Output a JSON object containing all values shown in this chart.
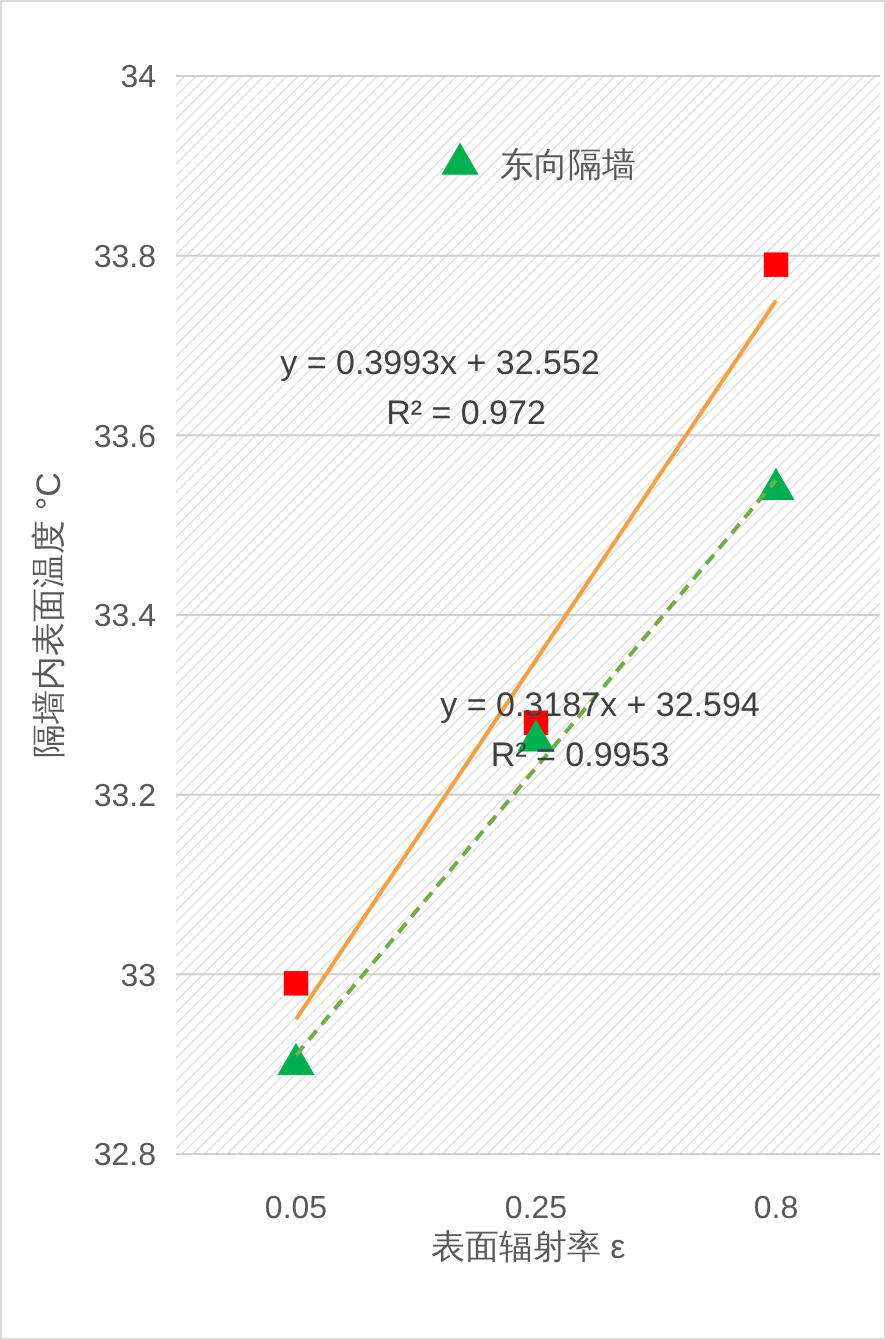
{
  "chart_data": {
    "type": "scatter",
    "xlabel": "表面辐射率 ε",
    "ylabel": "隔墙内表面温度 °C",
    "categories": [
      "0.05",
      "0.25",
      "0.8"
    ],
    "ylim": [
      32.8,
      34
    ],
    "yticks": [
      32.8,
      33,
      33.2,
      33.4,
      33.6,
      33.8,
      34
    ],
    "grid": "y",
    "legend": "top",
    "series": [
      {
        "color": "#ff0000",
        "marker": "square",
        "values": [
          32.99,
          33.28,
          33.79
        ]
      },
      {
        "name": "东向隔墙",
        "color": "#00b050",
        "marker": "triangle",
        "values": [
          32.9,
          33.26,
          33.54
        ]
      },
      {
        "type": "line",
        "color": "#f4a040",
        "marker": "none",
        "line_style": "solid",
        "x": [
          "0.05",
          "0.8"
        ],
        "values": [
          32.95,
          33.75
        ]
      },
      {
        "type": "line",
        "color": "#70ad47",
        "marker": "none",
        "line_style": "dashed",
        "x": [
          "0.05",
          "0.8"
        ],
        "values": [
          32.91,
          33.55
        ]
      }
    ],
    "annotations": [
      {
        "text": "y = 0.3993x + 32.552"
      },
      {
        "text": "R² = 0.972"
      },
      {
        "text": "y = 0.3187x + 32.594"
      },
      {
        "text": "R² = 0.9953"
      }
    ]
  }
}
